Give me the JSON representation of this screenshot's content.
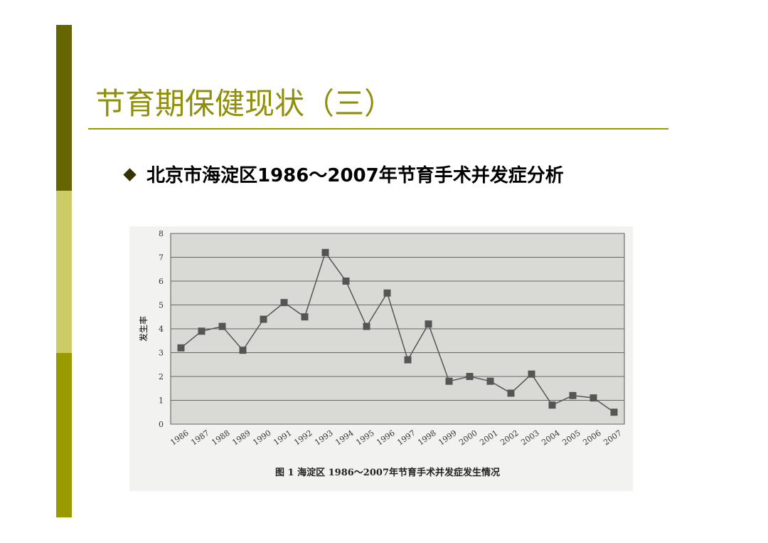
{
  "slide": {
    "title": "节育期保健现状（三）",
    "bullet": "北京市海淀区1986～2007年节育手术并发症分析"
  },
  "chart_data": {
    "type": "line",
    "caption": "图 1 海淀区 1986～2007年节育手术并发症发生情况",
    "y_label": "发生率",
    "categories": [
      "1986",
      "1987",
      "1988",
      "1989",
      "1990",
      "1991",
      "1992",
      "1993",
      "1994",
      "1995",
      "1996",
      "1997",
      "1998",
      "1999",
      "2000",
      "2001",
      "2002",
      "2003",
      "2004",
      "2005",
      "2006",
      "2007"
    ],
    "values": [
      3.2,
      3.9,
      4.1,
      3.1,
      4.4,
      5.1,
      4.5,
      7.2,
      6.0,
      4.1,
      5.5,
      2.7,
      4.2,
      1.8,
      2.0,
      1.8,
      1.3,
      2.1,
      0.8,
      1.2,
      1.1,
      0.5
    ],
    "color": "#555555",
    "ylim": [
      0,
      8
    ],
    "yticks": [
      0,
      1,
      2,
      3,
      4,
      5,
      6,
      7,
      8
    ],
    "grid": true
  }
}
